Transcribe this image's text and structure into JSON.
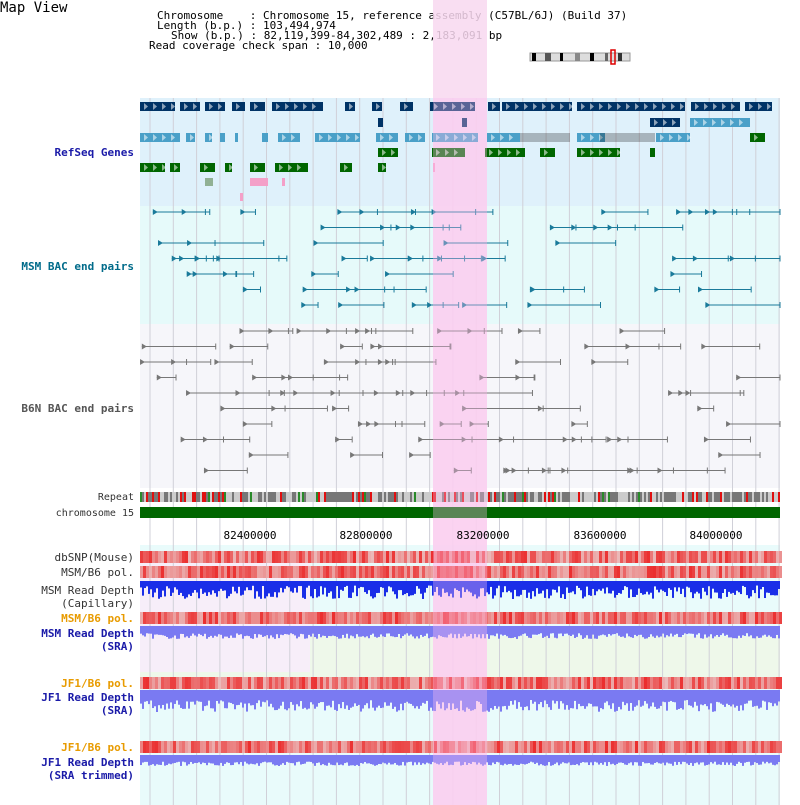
{
  "page": {
    "title": "Map View"
  },
  "info": {
    "chromosome_key": "Chromosome",
    "chromosome_value": "Chromosome 15, reference assembly (C57BL/6J) (Build 37)",
    "length_key": "Length (b.p.)",
    "length_value": "103,494,974",
    "show_key": "Show (b.p.)",
    "show_value": "82,119,399-84,302,489 : 2,183,091 bp",
    "span_key": "Read coverage check span",
    "span_value": "10,000"
  },
  "tracks": {
    "refseq": "RefSeq Genes",
    "msm_bac": "MSM BAC end pairs",
    "b6n_bac": "B6N BAC end pairs",
    "repeat": "Repeat",
    "chromosome": "chromosome 15",
    "dbsnp": "dbSNP(Mouse)",
    "msm_b6_pol_1": "MSM/B6 pol.",
    "msm_depth_cap": "MSM Read Depth\n(Capillary)",
    "msm_b6_pol_2": "MSM/B6 pol.",
    "msm_depth_sra": "MSM Read Depth\n(SRA)",
    "jf1_b6_pol_1": "JF1/B6 pol.",
    "jf1_depth_sra": "JF1 Read Depth\n(SRA)",
    "jf1_b6_pol_2": "JF1/B6 pol.",
    "jf1_depth_trim": "JF1 Read Depth\n(SRA trimmed)"
  },
  "axis": {
    "ticks": [
      "82400000",
      "82800000",
      "83200000",
      "83600000",
      "84000000"
    ]
  },
  "colors": {
    "refseq_bg": "#dff1fb",
    "msm_bg": "#e6fafa",
    "b6n_bg": "#f6f6fa",
    "highlight": "#f8d8f0",
    "chrom": "#006600",
    "gene_dark": "#003366",
    "gene_mid": "#4aa0c8",
    "gene_green": "#006600"
  }
}
